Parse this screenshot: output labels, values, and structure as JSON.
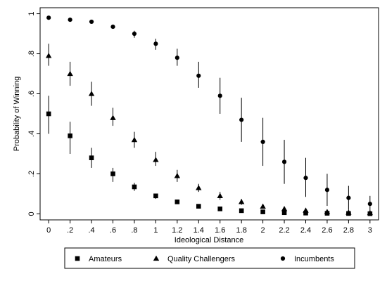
{
  "chart_data": {
    "type": "scatter",
    "title": "",
    "xlabel": "Ideological Distance",
    "ylabel": "Probability of Winning",
    "xlim": [
      -0.08,
      3.08
    ],
    "ylim": [
      -0.03,
      1.03
    ],
    "x_ticks": [
      {
        "value": 0,
        "label": "0"
      },
      {
        "value": 0.2,
        "label": ".2"
      },
      {
        "value": 0.4,
        "label": ".4"
      },
      {
        "value": 0.6,
        "label": ".6"
      },
      {
        "value": 0.8,
        "label": ".8"
      },
      {
        "value": 1.0,
        "label": "1"
      },
      {
        "value": 1.2,
        "label": "1.2"
      },
      {
        "value": 1.4,
        "label": "1.4"
      },
      {
        "value": 1.6,
        "label": "1.6"
      },
      {
        "value": 1.8,
        "label": "1.8"
      },
      {
        "value": 2.0,
        "label": "2"
      },
      {
        "value": 2.2,
        "label": "2.2"
      },
      {
        "value": 2.4,
        "label": "2.4"
      },
      {
        "value": 2.6,
        "label": "2.6"
      },
      {
        "value": 2.8,
        "label": "2.8"
      },
      {
        "value": 3.0,
        "label": "3"
      }
    ],
    "y_ticks": [
      {
        "value": 0,
        "label": "0"
      },
      {
        "value": 0.2,
        "label": ".2"
      },
      {
        "value": 0.4,
        "label": ".4"
      },
      {
        "value": 0.6,
        "label": ".6"
      },
      {
        "value": 0.8,
        "label": ".8"
      },
      {
        "value": 1.0,
        "label": "1"
      }
    ],
    "grid": false,
    "legend_position": "bottom",
    "x": [
      0,
      0.2,
      0.4,
      0.6,
      0.8,
      1.0,
      1.2,
      1.4,
      1.6,
      1.8,
      2.0,
      2.2,
      2.4,
      2.6,
      2.8,
      3.0
    ],
    "series": [
      {
        "name": "Amateurs",
        "marker": "square",
        "values": [
          0.5,
          0.39,
          0.28,
          0.2,
          0.135,
          0.09,
          0.06,
          0.038,
          0.025,
          0.016,
          0.01,
          0.006,
          0.004,
          0.003,
          0.002,
          0.001
        ],
        "lower": [
          0.4,
          0.3,
          0.23,
          0.16,
          0.115,
          0.075,
          0.05,
          0.03,
          0.018,
          0.01,
          0.006,
          0.003,
          0.002,
          0.001,
          0.0,
          0.0
        ],
        "upper": [
          0.59,
          0.46,
          0.33,
          0.23,
          0.155,
          0.1,
          0.067,
          0.045,
          0.032,
          0.022,
          0.015,
          0.01,
          0.008,
          0.006,
          0.005,
          0.004
        ]
      },
      {
        "name": "Quality Challengers",
        "marker": "triangle",
        "values": [
          0.79,
          0.7,
          0.6,
          0.48,
          0.37,
          0.27,
          0.19,
          0.13,
          0.09,
          0.06,
          0.037,
          0.025,
          0.017,
          0.01,
          0.007,
          0.005
        ],
        "lower": [
          0.74,
          0.64,
          0.54,
          0.44,
          0.33,
          0.24,
          0.16,
          0.11,
          0.07,
          0.045,
          0.027,
          0.015,
          0.008,
          0.004,
          0.002,
          0.001
        ],
        "upper": [
          0.85,
          0.76,
          0.66,
          0.53,
          0.41,
          0.31,
          0.22,
          0.15,
          0.11,
          0.075,
          0.05,
          0.035,
          0.027,
          0.02,
          0.015,
          0.012
        ]
      },
      {
        "name": "Incumbents",
        "marker": "circle",
        "values": [
          0.98,
          0.97,
          0.96,
          0.935,
          0.9,
          0.85,
          0.78,
          0.69,
          0.59,
          0.47,
          0.36,
          0.26,
          0.18,
          0.12,
          0.08,
          0.05
        ],
        "lower": [
          0.975,
          0.965,
          0.95,
          0.925,
          0.88,
          0.82,
          0.74,
          0.63,
          0.5,
          0.36,
          0.24,
          0.15,
          0.085,
          0.04,
          0.02,
          0.01
        ],
        "upper": [
          0.985,
          0.98,
          0.965,
          0.945,
          0.915,
          0.875,
          0.825,
          0.76,
          0.68,
          0.58,
          0.48,
          0.37,
          0.28,
          0.2,
          0.14,
          0.09
        ]
      }
    ]
  }
}
